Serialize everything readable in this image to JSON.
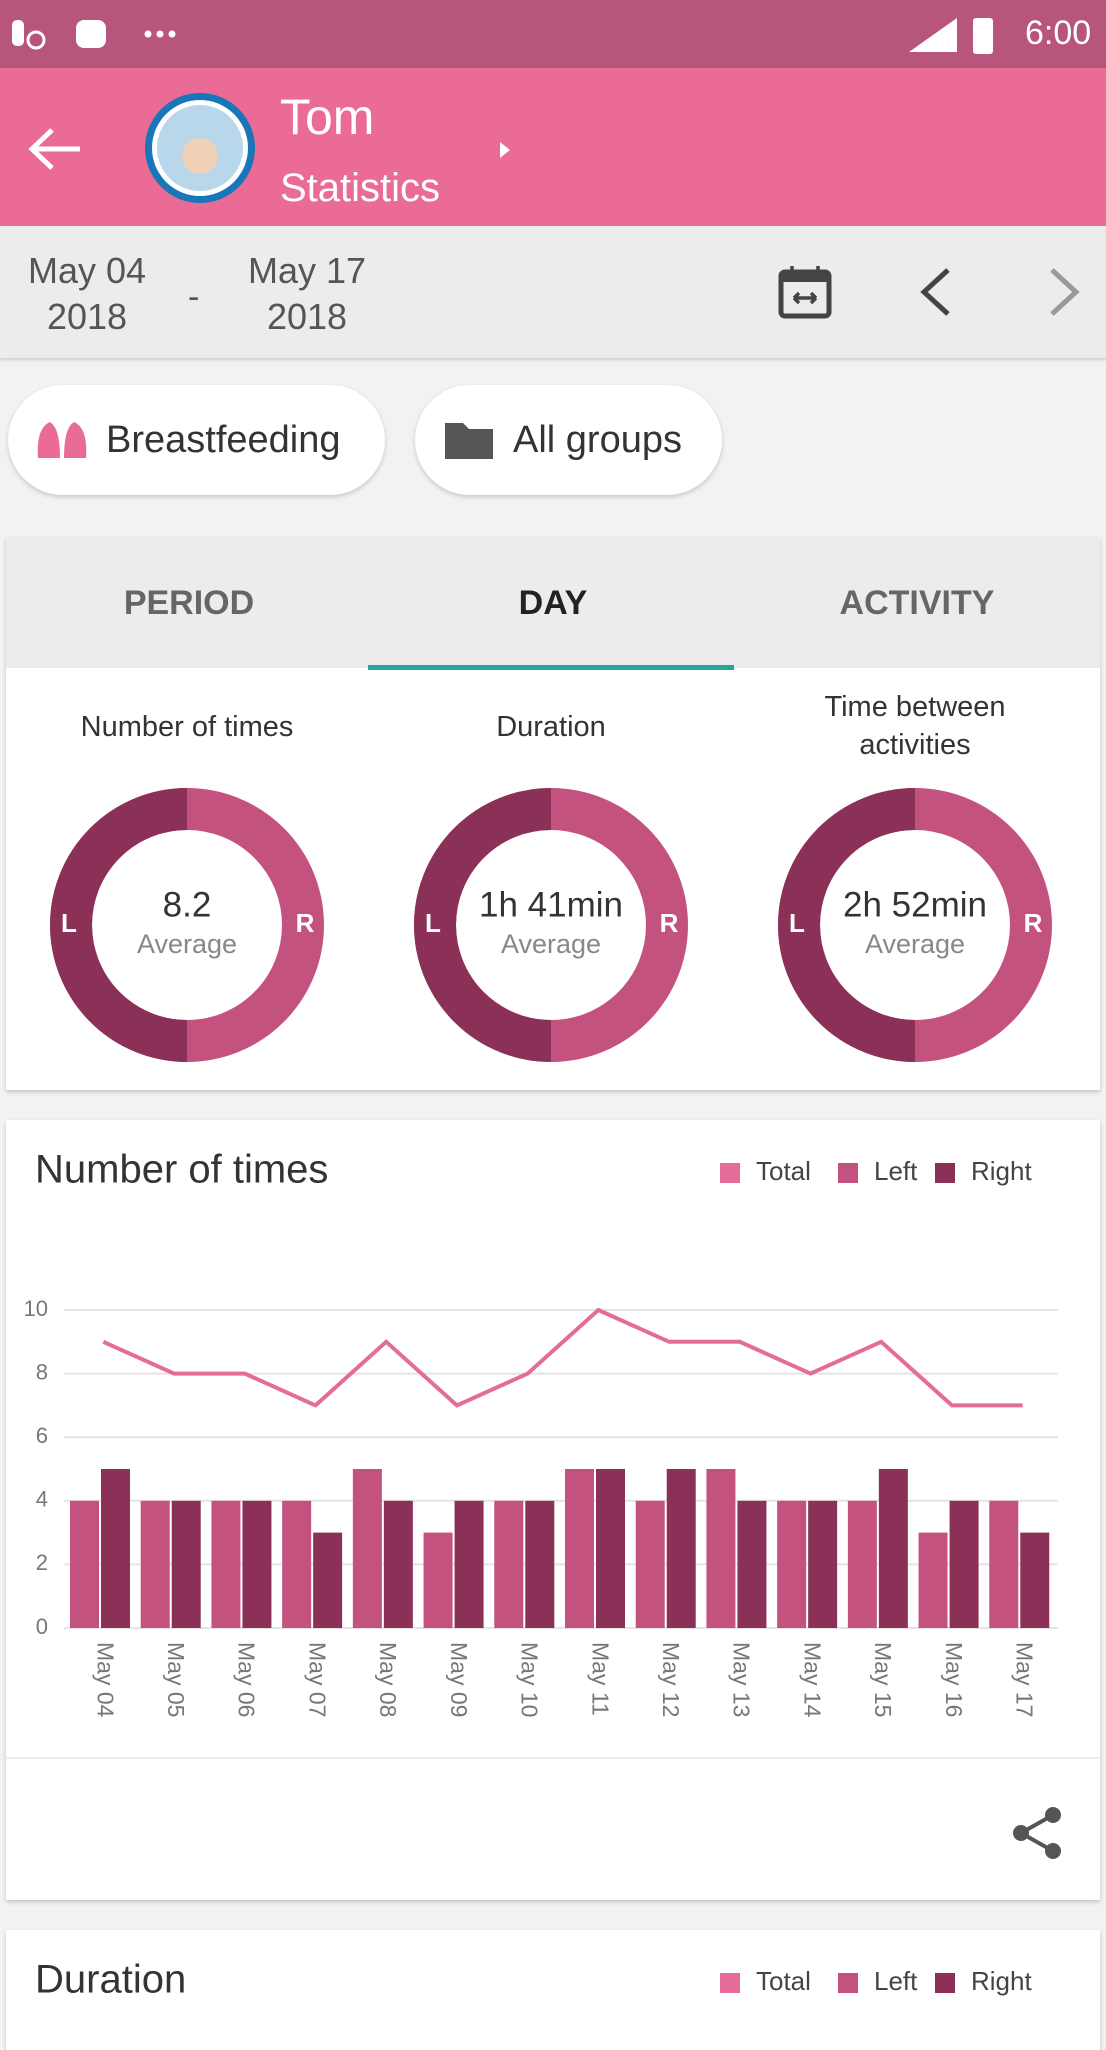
{
  "status_bar": {
    "time": "6:00"
  },
  "header": {
    "name": "Tom",
    "subtitle": "Statistics"
  },
  "date_range": {
    "start_day": "May 04",
    "start_year": "2018",
    "separator": "-",
    "end_day": "May 17",
    "end_year": "2018"
  },
  "filters": [
    "Breastfeeding",
    "All groups"
  ],
  "tabs": {
    "items": [
      "PERIOD",
      "DAY",
      "ACTIVITY"
    ],
    "selected": 1
  },
  "summary": [
    {
      "label": "Number of times",
      "value": "8.2",
      "caption": "Average",
      "left": "L",
      "right": "R"
    },
    {
      "label": "Duration",
      "value": "1h 41min",
      "caption": "Average",
      "left": "L",
      "right": "R"
    },
    {
      "label": "Time between activities",
      "value": "2h 52min",
      "caption": "Average",
      "left": "L",
      "right": "R"
    }
  ],
  "chart_data": {
    "type": "bar-line",
    "title": "Number of times",
    "categories": [
      "May 04",
      "May 05",
      "May 06",
      "May 07",
      "May 08",
      "May 09",
      "May 10",
      "May 11",
      "May 12",
      "May 13",
      "May 14",
      "May 15",
      "May 16",
      "May 17"
    ],
    "series": [
      {
        "name": "Total",
        "color": "#e46c98",
        "values": [
          9,
          8,
          8,
          7,
          9,
          7,
          8,
          10,
          9,
          9,
          8,
          9,
          7,
          7
        ]
      },
      {
        "name": "Left",
        "color": "#c4527f",
        "values": [
          4,
          4,
          4,
          4,
          5,
          3,
          4,
          5,
          4,
          5,
          4,
          4,
          3,
          4
        ]
      },
      {
        "name": "Right",
        "color": "#8b3157",
        "values": [
          5,
          4,
          4,
          3,
          4,
          4,
          4,
          5,
          5,
          4,
          4,
          5,
          4,
          3
        ]
      }
    ],
    "ylim": [
      0,
      10
    ],
    "yticks": [
      0,
      2,
      4,
      6,
      8,
      10
    ],
    "grid": true
  },
  "duration_card": {
    "title": "Duration",
    "legend": [
      "Total",
      "Left",
      "Right"
    ]
  }
}
